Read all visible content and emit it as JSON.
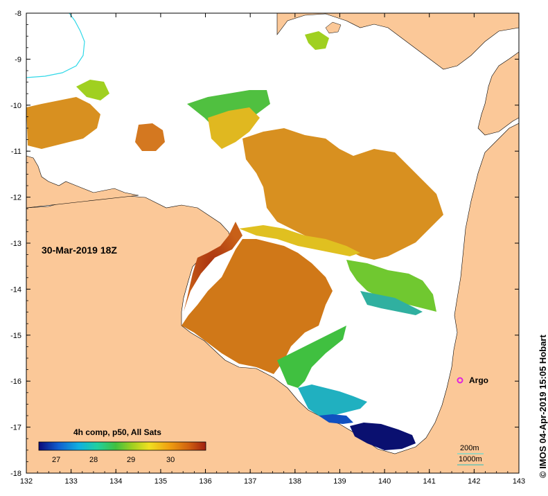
{
  "map": {
    "timestamp": "30-Mar-2019 18Z",
    "credit": "© IMOS 04-Apr-2019 15:05 Hobart",
    "lon_ticks": [
      "132",
      "133",
      "134",
      "135",
      "136",
      "137",
      "138",
      "139",
      "140",
      "141",
      "142",
      "143"
    ],
    "lat_ticks": [
      "-8",
      "-9",
      "-10",
      "-11",
      "-12",
      "-13",
      "-14",
      "-15",
      "-16",
      "-17",
      "-18"
    ],
    "lon_range": [
      132,
      143
    ],
    "lat_range": [
      -8,
      -18
    ],
    "colorbar": {
      "title": "4h comp, p50, All Sats",
      "labels": [
        "27",
        "28",
        "29",
        "30"
      ],
      "stops": [
        "#0a0a7a",
        "#1060d0",
        "#10b0e0",
        "#20d0a0",
        "#40c040",
        "#a0d020",
        "#f0e020",
        "#f0a010",
        "#d06010",
        "#a02010"
      ]
    },
    "argo": {
      "label": "Argo",
      "color": "#e020e0"
    },
    "bathymetry": {
      "label_200": "200m",
      "label_1000": "1000m",
      "color_200": "#40e0e0",
      "color_1000": "#20c0c0"
    },
    "colors": {
      "land": "#fbc898",
      "water_no_data": "#ffffff"
    }
  }
}
